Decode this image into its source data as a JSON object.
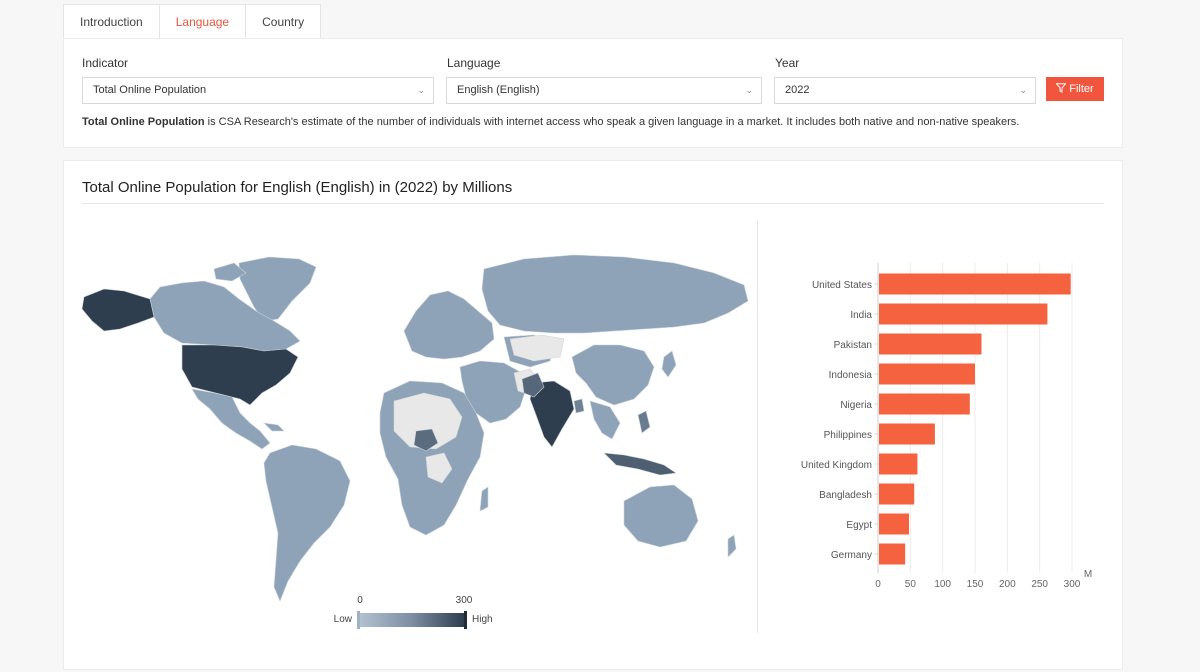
{
  "tabs": [
    "Introduction",
    "Language",
    "Country"
  ],
  "active_tab": 1,
  "filters": {
    "indicator_label": "Indicator",
    "indicator_value": "Total Online Population",
    "language_label": "Language",
    "language_value": "English (English)",
    "year_label": "Year",
    "year_value": "2022",
    "filter_button": "Filter"
  },
  "description": {
    "bold": "Total Online Population",
    "rest": " is CSA Research's estimate of the number of individuals with internet access who speak a given language in a market. It includes both native and non-native speakers."
  },
  "chart_title": "Total Online Population for English (English) in (2022) by Millions",
  "map_legend": {
    "min_label": "0",
    "max_label": "300",
    "low_label": "Low",
    "high_label": "High",
    "color_low": "#9fb2c6",
    "color_high": "#2a3b4c"
  },
  "colors": {
    "accent": "#f2553d",
    "bar": "#f4623f",
    "map_base": "#8fa3b8",
    "map_nodata": "#e8e8e8",
    "map_dark": "#2f3e4e"
  },
  "chart_data": {
    "type": "bar",
    "orientation": "horizontal",
    "categories": [
      "United States",
      "India",
      "Pakistan",
      "Indonesia",
      "Nigeria",
      "Philippines",
      "United Kingdom",
      "Bangladesh",
      "Egypt",
      "Germany"
    ],
    "values": [
      298,
      262,
      160,
      150,
      142,
      88,
      61,
      56,
      48,
      42
    ],
    "xlim": [
      0,
      300
    ],
    "xticks": [
      "0",
      "50",
      "100",
      "150",
      "200",
      "250",
      "300"
    ],
    "xunit": "M",
    "grid": "vertical"
  }
}
